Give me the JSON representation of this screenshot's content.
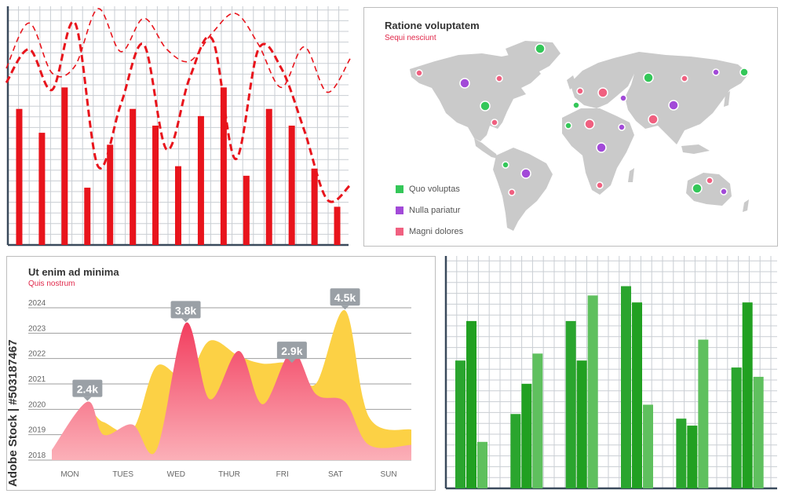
{
  "watermark": "Adobe Stock | #503187467",
  "colors": {
    "red": "#e8141c",
    "grid_light": "#c9ced3",
    "grid_border": "#3a4a5c",
    "map_land": "#cacaca",
    "green": "#34c759",
    "purple": "#a24ad8",
    "pink": "#f06080",
    "area_red": "#f24a6a",
    "area_yellow": "#fcd145",
    "label_bg": "#9aa0a6",
    "bar_green_dark": "#2aa52e",
    "bar_green_light": "#5fc05e"
  },
  "map_panel": {
    "title": "Ratione voluptatem",
    "subtitle": "Sequi nesciunt",
    "legend": [
      {
        "label": "Quo voluptas",
        "color": "#34c759"
      },
      {
        "label": "Nulla pariatur",
        "color": "#a24ad8"
      },
      {
        "label": "Magni dolores",
        "color": "#f06080"
      }
    ]
  },
  "chart_data": [
    {
      "type": "bar",
      "values": [
        57,
        47,
        66,
        24,
        42,
        57,
        50,
        33,
        54,
        66,
        29,
        57,
        50,
        32,
        16
      ],
      "series_lines": [
        {
          "style": "thin-dashed",
          "values": [
            74,
            93,
            72,
            75,
            99,
            81,
            95,
            82,
            77,
            89,
            97,
            84,
            66,
            83,
            64,
            78
          ]
        },
        {
          "style": "thick-dashed",
          "values": [
            68,
            82,
            65,
            93,
            33,
            59,
            84,
            40,
            70,
            86,
            36,
            82,
            74,
            48,
            19,
            25
          ]
        }
      ],
      "ylim": [
        0,
        100
      ]
    },
    {
      "type": "area",
      "title": "Ut enim ad minima",
      "subtitle": "Quis nostrum",
      "categories": [
        "MON",
        "TUES",
        "WED",
        "THUR",
        "FRI",
        "SAT",
        "SUN"
      ],
      "y_ticks": [
        "2024",
        "2023",
        "2022",
        "2021",
        "2020",
        "2019",
        "2018"
      ],
      "ylim": [
        2018,
        2024
      ],
      "series": [
        {
          "color": "#fcd145",
          "x": [
            0,
            0.7,
            1.0,
            1.55,
            2.0,
            2.55,
            3.0,
            3.55,
            4.0,
            4.55,
            5.0,
            5.55,
            6.0,
            6.55
          ],
          "values": [
            2018.4,
            2019.8,
            2019.5,
            2019.2,
            2021.7,
            2021.2,
            2022.7,
            2022.1,
            2021.8,
            2021.8,
            2021.0,
            2023.9,
            2019.7,
            2019.2
          ]
        },
        {
          "color": "#f24a6a",
          "x": [
            0,
            0.7,
            1.0,
            1.55,
            2.0,
            2.55,
            3.0,
            3.55,
            4.0,
            4.55,
            5.0,
            5.55,
            6.0,
            6.55
          ],
          "values": [
            2018.4,
            2020.3,
            2019.0,
            2019.4,
            2018.4,
            2023.4,
            2020.4,
            2022.3,
            2020.2,
            2022.3,
            2020.6,
            2020.3,
            2018.6,
            2018.6
          ]
        }
      ],
      "annotations": [
        {
          "text": "2.4k",
          "x": 0.7,
          "y": 2020.3
        },
        {
          "text": "3.8k",
          "x": 2.55,
          "y": 2023.4
        },
        {
          "text": "2.9k",
          "x": 4.55,
          "y": 2021.8
        },
        {
          "text": "4.5k",
          "x": 5.55,
          "y": 2023.9
        }
      ]
    },
    {
      "type": "bar",
      "groups": 6,
      "series": [
        {
          "color": "#2aa52e",
          "values": [
            55,
            32,
            72,
            87,
            30,
            52
          ]
        },
        {
          "color": "#21a021",
          "values": [
            72,
            45,
            55,
            80,
            27,
            80
          ]
        },
        {
          "color": "#5fc05e",
          "values": [
            20,
            58,
            83,
            36,
            64,
            48
          ]
        }
      ],
      "ylim": [
        0,
        100
      ]
    }
  ]
}
